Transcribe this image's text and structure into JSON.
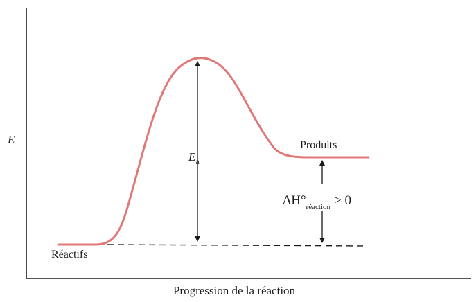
{
  "axes": {
    "y_label": "E",
    "x_label": "Progression de la réaction"
  },
  "labels": {
    "reactants": "Réactifs",
    "products": "Produits",
    "activation_energy": {
      "symbol": "E",
      "subscript": "a"
    },
    "enthalpy": {
      "symbol": "ΔH°",
      "subscript": "réaction",
      "relation": "> 0"
    }
  },
  "colors": {
    "curve": "#e07878",
    "axes": "#1a1a1a",
    "annotations": "#1a1a1a"
  }
}
